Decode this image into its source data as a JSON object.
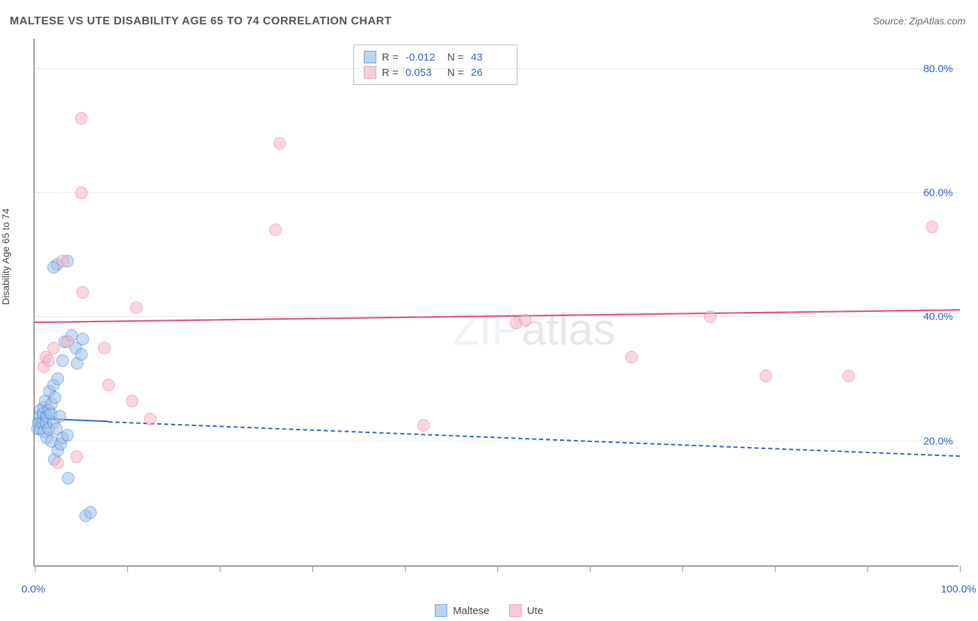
{
  "title": "MALTESE VS UTE DISABILITY AGE 65 TO 74 CORRELATION CHART",
  "source": "Source: ZipAtlas.com",
  "ylabel": "Disability Age 65 to 74",
  "watermark_a": "ZIP",
  "watermark_b": "atlas",
  "chart": {
    "type": "scatter",
    "xlim": [
      0,
      100
    ],
    "ylim": [
      0,
      85
    ],
    "x_ticks": [
      0,
      10,
      20,
      30,
      40,
      50,
      60,
      70,
      80,
      90,
      100
    ],
    "x_tick_labels": {
      "0": "0.0%",
      "100": "100.0%"
    },
    "y_gridlines": [
      20,
      40,
      60,
      80
    ],
    "y_tick_labels": {
      "20": "20.0%",
      "40": "40.0%",
      "60": "60.0%",
      "80": "80.0%"
    },
    "background_color": "#ffffff",
    "grid_color": "#dddddd",
    "axis_color": "#999999",
    "tick_label_color": "#2f5fbf",
    "marker_radius": 9,
    "series": [
      {
        "name": "Maltese",
        "fill": "#9ec3ea",
        "fill_opacity": 0.55,
        "stroke": "#3a77c4",
        "trend": {
          "y_at_x0": 23.5,
          "y_at_x100": 17.5,
          "solid_until_x": 8,
          "color": "#2f5fbf"
        },
        "r": "-0.012",
        "n": "43",
        "points": [
          [
            0.3,
            22
          ],
          [
            0.4,
            23
          ],
          [
            0.5,
            24
          ],
          [
            0.6,
            25
          ],
          [
            0.6,
            22
          ],
          [
            0.8,
            23
          ],
          [
            0.9,
            24.5
          ],
          [
            1.0,
            21.5
          ],
          [
            1.0,
            25.5
          ],
          [
            1.1,
            26.5
          ],
          [
            1.2,
            23
          ],
          [
            1.3,
            24
          ],
          [
            1.3,
            20.5
          ],
          [
            1.5,
            25
          ],
          [
            1.5,
            22
          ],
          [
            1.6,
            28
          ],
          [
            1.7,
            24.5
          ],
          [
            1.8,
            20
          ],
          [
            1.8,
            26
          ],
          [
            2.0,
            23
          ],
          [
            2.0,
            29
          ],
          [
            2.1,
            17
          ],
          [
            2.2,
            27
          ],
          [
            2.3,
            22
          ],
          [
            2.5,
            30
          ],
          [
            2.5,
            18.5
          ],
          [
            2.7,
            24
          ],
          [
            2.8,
            19.5
          ],
          [
            3.0,
            20.5
          ],
          [
            3.0,
            33
          ],
          [
            3.2,
            36
          ],
          [
            3.5,
            21
          ],
          [
            3.6,
            14
          ],
          [
            4.0,
            37
          ],
          [
            4.4,
            35
          ],
          [
            4.6,
            32.5
          ],
          [
            5.0,
            34
          ],
          [
            5.2,
            36.5
          ],
          [
            5.5,
            8
          ],
          [
            6.0,
            8.5
          ],
          [
            2.4,
            48.5
          ],
          [
            2.0,
            48
          ],
          [
            3.5,
            49
          ]
        ]
      },
      {
        "name": "Ute",
        "fill": "#f4b8c6",
        "fill_opacity": 0.55,
        "stroke": "#e77199",
        "trend": {
          "y_at_x0": 39,
          "y_at_x100": 41,
          "solid_until_x": 100,
          "color": "#e04f7e"
        },
        "r": "0.053",
        "n": "26",
        "points": [
          [
            1.0,
            32
          ],
          [
            1.2,
            33.5
          ],
          [
            1.5,
            33
          ],
          [
            2.0,
            35
          ],
          [
            2.5,
            16.5
          ],
          [
            3.0,
            49
          ],
          [
            3.5,
            36
          ],
          [
            4.5,
            17.5
          ],
          [
            5.0,
            72
          ],
          [
            5.0,
            60
          ],
          [
            5.2,
            44
          ],
          [
            7.5,
            35
          ],
          [
            8.0,
            29
          ],
          [
            10.5,
            26.5
          ],
          [
            11.0,
            41.5
          ],
          [
            12.5,
            23.5
          ],
          [
            26.0,
            54
          ],
          [
            26.5,
            68
          ],
          [
            42.0,
            22.5
          ],
          [
            52.0,
            39
          ],
          [
            64.5,
            33.5
          ],
          [
            73.0,
            40
          ],
          [
            79.0,
            30.5
          ],
          [
            88.0,
            30.5
          ],
          [
            97.0,
            54.5
          ],
          [
            53,
            39.5
          ]
        ]
      }
    ]
  },
  "legend_top": {
    "r_label": "R =",
    "n_label": "N ="
  },
  "legend_bottom": [
    "Maltese",
    "Ute"
  ]
}
